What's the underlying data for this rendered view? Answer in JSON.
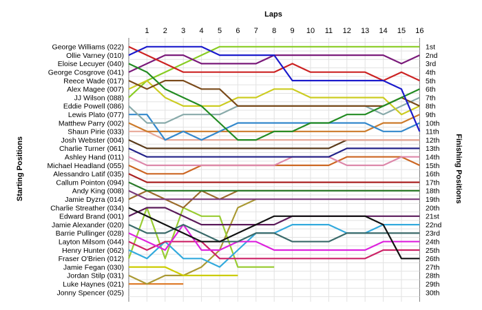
{
  "chart_data": {
    "type": "line",
    "xlabel": "Laps",
    "ylabel_left": "Starting Positions",
    "ylabel_right": "Finishing Positions",
    "laps": [
      1,
      2,
      3,
      4,
      5,
      6,
      7,
      8,
      9,
      10,
      11,
      12,
      13,
      14,
      15,
      16
    ],
    "finishing_labels": [
      "1st",
      "2nd",
      "3rd",
      "4th",
      "5th",
      "6th",
      "7th",
      "8th",
      "9th",
      "10th",
      "11th",
      "12th",
      "13th",
      "14th",
      "15th",
      "16th",
      "17th",
      "18th",
      "19th",
      "20th",
      "21st",
      "22nd",
      "23rd",
      "24th",
      "25th",
      "26th",
      "27th",
      "28th",
      "29th",
      "30th"
    ],
    "grid": true,
    "series": [
      {
        "name": "Ollie Varney (010)",
        "color": "#1a1acc",
        "positions": [
          2,
          1,
          1,
          1,
          1,
          2,
          2,
          2,
          2,
          5,
          5,
          5,
          5,
          5,
          5,
          6,
          11
        ]
      },
      {
        "name": "George Williams (022)",
        "color": "#cc2222",
        "positions": [
          1,
          2,
          3,
          4,
          4,
          4,
          4,
          4,
          4,
          3,
          4,
          4,
          4,
          4,
          5,
          4,
          5
        ]
      },
      {
        "name": "Eloise Lecuyer (040)",
        "color": "#228b22",
        "positions": [
          3,
          4,
          6,
          7,
          8,
          10,
          12,
          12,
          11,
          11,
          10,
          10,
          9,
          9,
          8,
          7,
          6
        ]
      },
      {
        "name": "George Cosgrove (041)",
        "color": "#7a1a7a",
        "positions": [
          4,
          3,
          2,
          2,
          3,
          3,
          3,
          3,
          2,
          2,
          2,
          2,
          2,
          2,
          2,
          3,
          2
        ]
      },
      {
        "name": "Reece Wade (017)",
        "color": "#7a4a1a",
        "positions": [
          5,
          6,
          5,
          5,
          6,
          6,
          8,
          8,
          8,
          8,
          8,
          8,
          8,
          8,
          8,
          7,
          8
        ]
      },
      {
        "name": "Alex Magee (007)",
        "color": "#cccc22",
        "positions": [
          6,
          5,
          7,
          8,
          8,
          8,
          7,
          7,
          6,
          6,
          7,
          7,
          7,
          7,
          7,
          9,
          8
        ]
      },
      {
        "name": "JJ Wilson (088)",
        "color": "#88cc22",
        "positions": [
          7,
          5,
          4,
          3,
          2,
          1,
          1,
          1,
          1,
          1,
          1,
          1,
          1,
          1,
          1,
          1,
          1
        ]
      },
      {
        "name": "Eddie Powell (086)",
        "color": "#88aaaa",
        "positions": [
          8,
          10,
          10,
          9,
          9,
          9,
          8,
          8,
          8,
          8,
          8,
          8,
          8,
          8,
          9,
          8,
          7
        ]
      },
      {
        "name": "Lewis Plato (077)",
        "color": "#3388cc",
        "positions": [
          9,
          9,
          12,
          11,
          12,
          11,
          10,
          10,
          10,
          10,
          10,
          10,
          10,
          10,
          11,
          11,
          10
        ]
      },
      {
        "name": "Matthew Parry (002)",
        "color": "#cc7a2a",
        "positions": [
          10,
          11,
          11,
          11,
          11,
          11,
          11,
          11,
          11,
          11,
          11,
          11,
          11,
          11,
          10,
          10,
          9
        ]
      },
      {
        "name": "Shaun Pirie (033)",
        "color": "#e8a898",
        "positions": [
          11,
          11,
          12,
          12,
          12,
          12,
          12,
          12,
          12,
          12,
          12,
          12,
          12,
          12,
          12,
          12,
          12
        ]
      },
      {
        "name": "Josh Webster (004)",
        "color": "#5a3a1a",
        "positions": [
          12,
          13,
          13,
          13,
          13,
          13,
          13,
          13,
          13,
          13,
          13,
          13,
          12,
          12,
          12,
          12,
          12
        ]
      },
      {
        "name": "Charlie Turner (061)",
        "color": "#222288",
        "positions": [
          13,
          14,
          14,
          14,
          14,
          14,
          14,
          14,
          14,
          14,
          14,
          14,
          13,
          13,
          13,
          13,
          13
        ]
      },
      {
        "name": "Ashley Hand (011)",
        "color": "#dd88aa",
        "positions": [
          14,
          15,
          15,
          15,
          15,
          15,
          15,
          15,
          15,
          14,
          14,
          14,
          15,
          15,
          15,
          14,
          14
        ]
      },
      {
        "name": "Michael Headland (055)",
        "color": "#cc6622",
        "positions": [
          15,
          16,
          16,
          16,
          15,
          15,
          15,
          15,
          15,
          15,
          15,
          15,
          14,
          14,
          14,
          14,
          15
        ]
      },
      {
        "name": "Alessandro Latif (035)",
        "color": "#aa2222",
        "positions": [
          16,
          17,
          17,
          17,
          17,
          17,
          17,
          17,
          17,
          17,
          17,
          17,
          17,
          17,
          17,
          17,
          17
        ]
      },
      {
        "name": "Callum Pointon (094)",
        "color": "#2a7a2a",
        "positions": [
          17,
          18,
          18,
          18,
          18,
          18,
          18,
          18,
          18,
          18,
          18,
          18,
          18,
          18,
          18,
          18,
          18
        ]
      },
      {
        "name": "Andy King (008)",
        "color": "#7a3a7a",
        "positions": [
          18,
          19,
          19,
          19,
          19,
          19,
          19,
          19,
          19,
          19,
          19,
          19,
          19,
          19,
          19,
          19,
          19
        ]
      },
      {
        "name": "Jamie Dyzra (014)",
        "color": "#9a6a2a",
        "positions": [
          19,
          18,
          19,
          20,
          18,
          19,
          18,
          18,
          18,
          18,
          18,
          18,
          18,
          18,
          18,
          18,
          18
        ]
      },
      {
        "name": "Charlie Streather (034)",
        "color": "#111111",
        "positions": [
          20,
          21,
          22,
          23,
          24,
          24,
          23,
          22,
          21,
          21,
          21,
          21,
          21,
          21,
          22,
          26,
          26
        ]
      },
      {
        "name": "Edward Brand (001)",
        "color": "#5a1a5a",
        "positions": [
          21,
          20,
          20,
          21,
          22,
          22,
          22,
          22,
          22,
          21,
          21,
          21,
          21,
          21,
          21,
          21,
          21
        ]
      },
      {
        "name": "Jamie Alexander (020)",
        "color": "#3a6a6a",
        "positions": [
          22,
          23,
          23,
          22,
          23,
          24,
          24,
          23,
          23,
          24,
          24,
          24,
          23,
          23,
          23,
          23,
          23
        ]
      },
      {
        "name": "Barrie Pullinger (028)",
        "color": "#dd22dd",
        "positions": [
          23,
          24,
          25,
          22,
          25,
          25,
          24,
          24,
          25,
          25,
          25,
          25,
          25,
          25,
          24,
          24,
          24
        ]
      },
      {
        "name": "Layton Milsom (044)",
        "color": "#cc2266",
        "positions": [
          24,
          25,
          24,
          24,
          24,
          26,
          26,
          26,
          26,
          26,
          26,
          26,
          26,
          26,
          25,
          25,
          25
        ]
      },
      {
        "name": "Henry Hunter (062)",
        "color": "#33aadd",
        "positions": [
          25,
          26,
          24,
          26,
          26,
          27,
          25,
          23,
          23,
          22,
          22,
          22,
          23,
          23,
          22,
          22,
          22
        ]
      },
      {
        "name": "Fraser O'Brien (012)",
        "color": "#99cc33",
        "positions": [
          26,
          20,
          26,
          20,
          21,
          21,
          27,
          27,
          27
        ]
      },
      {
        "name": "Jamie Fegan (030)",
        "color": "#cccc00",
        "positions": [
          27,
          27,
          27,
          28,
          28,
          28,
          28
        ]
      },
      {
        "name": "Jordan Stilp (031)",
        "color": "#aa9933",
        "positions": [
          28,
          29,
          28,
          28,
          27,
          25,
          20,
          19
        ]
      },
      {
        "name": "Luke Haynes (021)",
        "color": "#dd7722",
        "positions": [
          29,
          29,
          29,
          29
        ]
      },
      {
        "name": "Jonny Spencer (025)",
        "color": "#cc00cc",
        "positions": [
          30
        ]
      }
    ]
  }
}
